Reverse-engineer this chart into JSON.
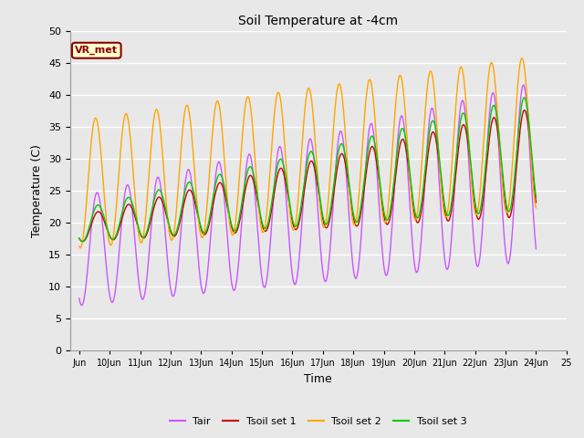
{
  "title": "Soil Temperature at -4cm",
  "xlabel": "Time",
  "ylabel": "Temperature (C)",
  "ylim": [
    0,
    50
  ],
  "background_color": "#e8e8e8",
  "plot_bg_color": "#e8e8e8",
  "annotation_text": "VR_met",
  "annotation_fg": "#8B0000",
  "annotation_bg": "#ffffcc",
  "colors": {
    "Tair": "#cc55ff",
    "Tsoil1": "#cc0000",
    "Tsoil2": "#ffa500",
    "Tsoil3": "#00cc00"
  },
  "legend_labels": [
    "Tair",
    "Tsoil set 1",
    "Tsoil set 2",
    "Tsoil set 3"
  ],
  "xtick_labels": [
    "Jun",
    "10Jun",
    "11Jun",
    "12Jun",
    "13Jun",
    "14Jun",
    "15Jun",
    "16Jun",
    "17Jun",
    "18Jun",
    "19Jun",
    "20Jun",
    "21Jun",
    "22Jun",
    "23Jun",
    "24Jun",
    "25"
  ],
  "yticks": [
    0,
    5,
    10,
    15,
    20,
    25,
    30,
    35,
    40,
    45,
    50
  ],
  "n_days": 15,
  "pts_per_day": 48
}
